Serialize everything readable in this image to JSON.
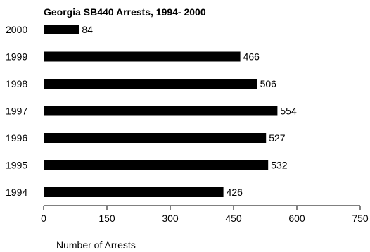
{
  "chart_data": {
    "type": "bar",
    "orientation": "horizontal",
    "title": "Georgia SB440 Arrests, 1994- 2000",
    "xlabel": "Number of Arrests",
    "ylabel": "",
    "categories": [
      "2000",
      "1999",
      "1998",
      "1997",
      "1996",
      "1995",
      "1994"
    ],
    "values": [
      84,
      466,
      506,
      554,
      527,
      532,
      426
    ],
    "value_labels": [
      "84",
      "466",
      "506",
      "554",
      "527",
      "532",
      "426"
    ],
    "xlim": [
      0,
      750
    ],
    "xticks": [
      "0",
      "150",
      "300",
      "450",
      "600",
      "750"
    ],
    "bar_color": "#000000",
    "grid": false,
    "legend": "none"
  }
}
